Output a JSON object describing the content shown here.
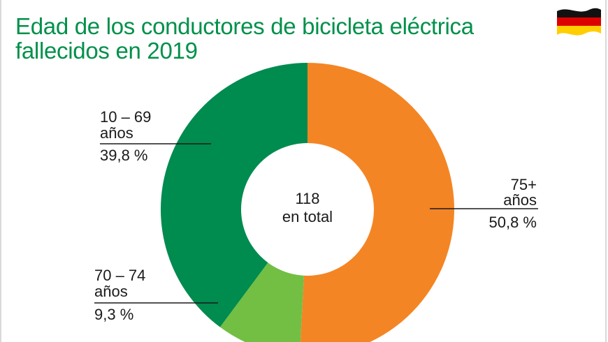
{
  "title_line1": "Edad de los conductores de bicicleta eléctrica",
  "title_line2": "fallecidos en 2019",
  "flag_icon": "germany-flag-icon",
  "colors": {
    "title": "#00904a",
    "dark_green": "#008b4f",
    "light_green": "#72bf44",
    "orange": "#f48524",
    "flag_black": "#111111",
    "flag_red": "#dd0000",
    "flag_gold": "#ffce00"
  },
  "chart_data": {
    "type": "pie",
    "style": "donut",
    "title": "Edad de los conductores de bicicleta eléctrica fallecidos en 2019",
    "center_text": {
      "value": "118",
      "label": "en total"
    },
    "slices": [
      {
        "name": "75+ años",
        "line1": "75+",
        "line2": "años",
        "percent_label": "50,8 %",
        "value": 50.8,
        "color": "#f48524"
      },
      {
        "name": "70 – 74 años",
        "line1": "70 – 74",
        "line2": "años",
        "percent_label": "9,3 %",
        "value": 9.3,
        "color": "#72bf44"
      },
      {
        "name": "10 – 69 años",
        "line1": "10 – 69",
        "line2": "años",
        "percent_label": "39,8 %",
        "value": 39.8,
        "color": "#008b4f"
      }
    ]
  }
}
